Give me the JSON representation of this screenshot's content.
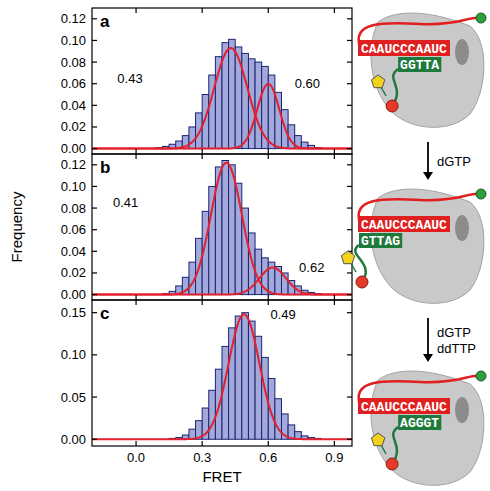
{
  "chart_data": [
    {
      "type": "histogram",
      "panel": "a",
      "color": "#a3aadb",
      "tick_labels": "y",
      "xlim": [
        -0.2,
        0.98
      ],
      "xticks": [
        {
          "value": 0,
          "label": "0.0"
        },
        0.3,
        0.6,
        0.9
      ],
      "ylim": [
        -0.005,
        0.13
      ],
      "yticks": [
        {
          "value": 0,
          "label": "0.00"
        },
        {
          "value": 0.02,
          "label": "0.02"
        },
        {
          "value": 0.04,
          "label": "0.04"
        },
        {
          "value": 0.06,
          "label": "0.06"
        },
        {
          "value": 0.08,
          "label": "0.08"
        },
        {
          "value": 0.1,
          "label": "0.10"
        },
        {
          "value": 0.12,
          "label": "0.12"
        }
      ],
      "bins": [
        0,
        0.03,
        0.06,
        0.09,
        0.12,
        0.15,
        0.18,
        0.21,
        0.24,
        0.27,
        0.3,
        0.33,
        0.36,
        0.39,
        0.42,
        0.45,
        0.48,
        0.51,
        0.54,
        0.57,
        0.6,
        0.63,
        0.66,
        0.69,
        0.72,
        0.75,
        0.78,
        0.81,
        0.84,
        0.87,
        0.9
      ],
      "values": [
        0,
        0,
        0,
        0.001,
        0.002,
        0.004,
        0.007,
        0.012,
        0.02,
        0.033,
        0.05,
        0.068,
        0.085,
        0.098,
        0.101,
        0.094,
        0.088,
        0.083,
        0.08,
        0.076,
        0.068,
        0.052,
        0.036,
        0.022,
        0.012,
        0.006,
        0.003,
        0.001,
        0,
        0
      ],
      "fits": [
        {
          "center": 0.43,
          "label": "0.43",
          "amplitude": 0.093,
          "sigma": 0.075,
          "color": "#e3202b"
        },
        {
          "center": 0.6,
          "label": "0.60",
          "amplitude": 0.06,
          "sigma": 0.05,
          "color": "#e3202b"
        }
      ]
    },
    {
      "type": "histogram",
      "panel": "b",
      "color": "#a3aadb",
      "tick_labels": "y",
      "y_label": "Frequency",
      "xlim": [
        -0.2,
        0.98
      ],
      "xticks": [
        {
          "value": 0,
          "label": "0.0"
        },
        0.3,
        0.6,
        0.9
      ],
      "ylim": [
        -0.005,
        0.13
      ],
      "yticks": [
        {
          "value": 0,
          "label": "0.00"
        },
        {
          "value": 0.02,
          "label": "0.02"
        },
        {
          "value": 0.04,
          "label": "0.04"
        },
        {
          "value": 0.06,
          "label": "0.06"
        },
        {
          "value": 0.08,
          "label": "0.08"
        },
        {
          "value": 0.1,
          "label": "0.10"
        },
        {
          "value": 0.12,
          "label": "0.12"
        }
      ],
      "bins": [
        0,
        0.03,
        0.06,
        0.09,
        0.12,
        0.15,
        0.18,
        0.21,
        0.24,
        0.27,
        0.3,
        0.33,
        0.36,
        0.39,
        0.42,
        0.45,
        0.48,
        0.51,
        0.54,
        0.57,
        0.6,
        0.63,
        0.66,
        0.69,
        0.72,
        0.75,
        0.78,
        0.81,
        0.84,
        0.87,
        0.9
      ],
      "values": [
        0,
        0,
        0,
        0,
        0.001,
        0.003,
        0.008,
        0.016,
        0.03,
        0.052,
        0.077,
        0.1,
        0.118,
        0.124,
        0.12,
        0.103,
        0.08,
        0.057,
        0.042,
        0.034,
        0.03,
        0.026,
        0.02,
        0.013,
        0.008,
        0.004,
        0.002,
        0.001,
        0,
        0
      ],
      "fits": [
        {
          "center": 0.41,
          "label": "0.41",
          "amplitude": 0.122,
          "sigma": 0.07,
          "color": "#e3202b"
        },
        {
          "center": 0.62,
          "label": "0.62",
          "amplitude": 0.025,
          "sigma": 0.06,
          "color": "#e3202b"
        }
      ]
    },
    {
      "type": "histogram",
      "panel": "c",
      "color": "#a3aadb",
      "x_label": "FRET",
      "xlim": [
        -0.2,
        0.98
      ],
      "xticks": [
        {
          "value": 0,
          "label": "0.0"
        },
        0.3,
        0.6,
        0.9
      ],
      "ylim": [
        -0.008,
        0.165
      ],
      "yticks": [
        {
          "value": 0,
          "label": "0.00"
        },
        {
          "value": 0.05,
          "label": "0.05"
        },
        {
          "value": 0.1,
          "label": "0.10"
        },
        {
          "value": 0.15,
          "label": "0.15"
        }
      ],
      "bins": [
        0,
        0.03,
        0.06,
        0.09,
        0.12,
        0.15,
        0.18,
        0.21,
        0.24,
        0.27,
        0.3,
        0.33,
        0.36,
        0.39,
        0.42,
        0.45,
        0.48,
        0.51,
        0.54,
        0.57,
        0.6,
        0.63,
        0.66,
        0.69,
        0.72,
        0.75,
        0.78,
        0.81,
        0.84,
        0.87,
        0.9
      ],
      "values": [
        0,
        0,
        0,
        0,
        0,
        0.001,
        0.002,
        0.005,
        0.012,
        0.022,
        0.037,
        0.058,
        0.083,
        0.11,
        0.132,
        0.146,
        0.15,
        0.14,
        0.122,
        0.097,
        0.072,
        0.048,
        0.03,
        0.017,
        0.009,
        0.004,
        0.002,
        0.001,
        0,
        0
      ],
      "fits": [
        {
          "center": 0.49,
          "label": "0.49",
          "amplitude": 0.148,
          "sigma": 0.07,
          "color": "#e3202b"
        }
      ]
    }
  ],
  "diagram": {
    "states": [
      {
        "template": "CAAUCCCAAUC",
        "primer": "GGTTA"
      },
      {
        "template": "CAAUCCCAAUC",
        "primer": "GTTAG"
      },
      {
        "template": "CAAUCCCAAUC",
        "primer": "AGGGT"
      }
    ],
    "steps": [
      {
        "reagents": [
          "dGTP"
        ]
      },
      {
        "reagents": [
          "dGTP",
          "ddTTP"
        ]
      }
    ]
  }
}
